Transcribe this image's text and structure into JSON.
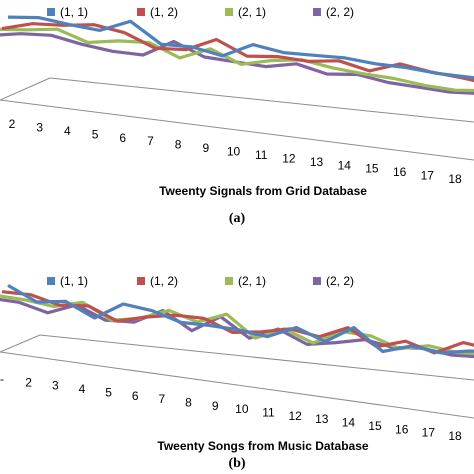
{
  "chart_data": [
    {
      "type": "line",
      "caption": "(a)",
      "xlabel": "Tweenty Signals from Grid Database",
      "categories": [
        "2",
        "3",
        "4",
        "5",
        "6",
        "7",
        "8",
        "9",
        "10",
        "11",
        "12",
        "13",
        "14",
        "15",
        "16",
        "17",
        "18"
      ],
      "legend_position": "top",
      "series": [
        {
          "name": "(1, 1)",
          "color": "#4f81bd",
          "values": [
            40,
            41,
            36,
            32,
            42,
            22,
            21,
            14,
            26,
            20,
            19,
            18,
            14,
            12,
            8,
            6,
            4
          ]
        },
        {
          "name": "(1, 2)",
          "color": "#c0504d",
          "values": [
            34,
            40,
            40,
            42,
            36,
            23,
            23,
            34,
            20,
            21,
            18,
            20,
            12,
            20,
            14,
            10,
            5
          ]
        },
        {
          "name": "(2, 1)",
          "color": "#9bbb59",
          "values": [
            38,
            39,
            41,
            30,
            33,
            33,
            20,
            30,
            17,
            22,
            24,
            18,
            14,
            11,
            6,
            3,
            4
          ]
        },
        {
          "name": "(2, 2)",
          "color": "#8064a2",
          "values": [
            37,
            40,
            40,
            33,
            28,
            26,
            40,
            27,
            24,
            21,
            25,
            17,
            18,
            12,
            9,
            6,
            6
          ]
        }
      ]
    },
    {
      "type": "line",
      "caption": "(b)",
      "xlabel": "Tweenty Songs from Music Database",
      "categories": [
        "-",
        "2",
        "3",
        "4",
        "5",
        "6",
        "7",
        "8",
        "9",
        "10",
        "11",
        "12",
        "13",
        "14",
        "15",
        "16",
        "17",
        "18"
      ],
      "legend_position": "top",
      "series": [
        {
          "name": "(1, 1)",
          "color": "#4f81bd",
          "values": [
            34,
            22,
            24,
            12,
            25,
            21,
            13,
            12,
            10,
            6,
            15,
            5,
            18,
            0,
            6,
            2,
            5,
            6
          ]
        },
        {
          "name": "(1, 2)",
          "color": "#c0504d",
          "values": [
            33,
            32,
            25,
            26,
            15,
            20,
            23,
            22,
            12,
            14,
            18,
            13,
            22,
            8,
            14,
            6,
            16,
            12
          ]
        },
        {
          "name": "(2, 1)",
          "color": "#9bbb59",
          "values": [
            34,
            32,
            28,
            33,
            20,
            23,
            31,
            23,
            31,
            13,
            22,
            12,
            23,
            21,
            12,
            16,
            12,
            12
          ]
        },
        {
          "name": "(2, 2)",
          "color": "#8064a2",
          "values": [
            36,
            34,
            27,
            35,
            24,
            24,
            35,
            20,
            33,
            17,
            26,
            15,
            18,
            22,
            17,
            18,
            14,
            14
          ]
        }
      ]
    }
  ]
}
